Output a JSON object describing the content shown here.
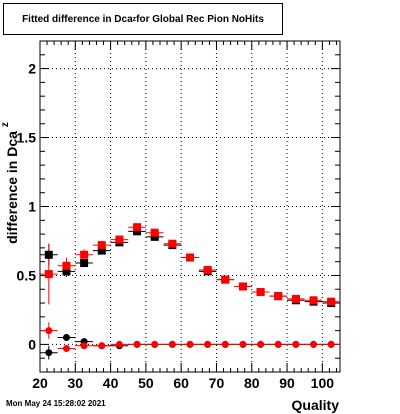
{
  "title": {
    "prefix": "Fitted difference in Dca",
    "subscript": "z",
    "suffix": " for Global Rec Pion NoHits"
  },
  "footer_timestamp": "Mon May 24 15:28:02 2021",
  "chart_data": {
    "type": "scatter",
    "title": "Fitted difference in Dca_z for Global Rec Pion NoHits",
    "xlabel": "Quality",
    "ylabel": "difference in Dca",
    "ylabel_subscript": "z",
    "xlim": [
      20,
      105
    ],
    "ylim": [
      -0.2,
      2.2
    ],
    "xticks": [
      20,
      30,
      40,
      50,
      60,
      70,
      80,
      90,
      100
    ],
    "xtick_labels": [
      "20",
      "30",
      "40",
      "50",
      "60",
      "70",
      "80",
      "90",
      "100"
    ],
    "yticks": [
      0,
      0.5,
      1,
      1.5,
      2
    ],
    "ytick_labels": [
      "0",
      "0.5",
      "1",
      "1.5",
      "2"
    ],
    "grid": true,
    "series": [
      {
        "marker": "square",
        "color": "#000000",
        "x": [
          22.5,
          27.5,
          32.5,
          37.5,
          42.5,
          47.5,
          52.5,
          57.5,
          62.5,
          67.5,
          72.5,
          77.5,
          82.5,
          87.5,
          92.5,
          97.5,
          102.5
        ],
        "y": [
          0.65,
          0.53,
          0.59,
          0.68,
          0.74,
          0.82,
          0.78,
          0.72,
          0.63,
          0.53,
          0.47,
          0.42,
          0.38,
          0.35,
          0.32,
          0.31,
          0.3
        ],
        "yerr": [
          0.08,
          0.04,
          0.03,
          0.02,
          0.02,
          0.02,
          0.02,
          0.02,
          0.02,
          0.02,
          0.02,
          0.02,
          0.02,
          0.02,
          0.02,
          0.02,
          0.02
        ]
      },
      {
        "marker": "square",
        "color": "#ff0000",
        "x": [
          22.5,
          27.5,
          32.5,
          37.5,
          42.5,
          47.5,
          52.5,
          57.5,
          62.5,
          67.5,
          72.5,
          77.5,
          82.5,
          87.5,
          92.5,
          97.5,
          102.5
        ],
        "y": [
          0.51,
          0.57,
          0.65,
          0.72,
          0.76,
          0.85,
          0.81,
          0.73,
          0.63,
          0.54,
          0.47,
          0.42,
          0.38,
          0.35,
          0.33,
          0.32,
          0.31
        ],
        "yerr": [
          0.22,
          0.06,
          0.04,
          0.03,
          0.02,
          0.02,
          0.02,
          0.02,
          0.02,
          0.02,
          0.02,
          0.02,
          0.02,
          0.02,
          0.02,
          0.02,
          0.02
        ]
      },
      {
        "marker": "circle",
        "color": "#000000",
        "x": [
          22.5,
          27.5,
          32.5,
          37.5,
          42.5,
          47.5,
          52.5,
          57.5,
          62.5,
          67.5,
          72.5,
          77.5,
          82.5,
          87.5,
          92.5,
          97.5,
          102.5
        ],
        "y": [
          -0.06,
          0.05,
          0.02,
          -0.01,
          -0.01,
          0.0,
          0.0,
          0.0,
          0.0,
          0.0,
          0.0,
          0.0,
          0.0,
          0.0,
          0.0,
          0.0,
          0.0
        ],
        "yerr": [
          0.05,
          0.02,
          0.01,
          0.01,
          0.01,
          0.01,
          0.01,
          0.01,
          0.01,
          0.01,
          0.01,
          0.01,
          0.01,
          0.01,
          0.01,
          0.01,
          0.01
        ]
      },
      {
        "marker": "circle",
        "color": "#ff0000",
        "x": [
          22.5,
          27.5,
          32.5,
          37.5,
          42.5,
          47.5,
          52.5,
          57.5,
          62.5,
          67.5,
          72.5,
          77.5,
          82.5,
          87.5,
          92.5,
          97.5,
          102.5
        ],
        "y": [
          0.1,
          -0.03,
          -0.01,
          -0.01,
          0.0,
          0.0,
          0.0,
          0.0,
          0.0,
          0.0,
          0.0,
          0.0,
          0.0,
          0.0,
          0.0,
          0.0,
          0.0
        ],
        "yerr": [
          0.06,
          0.02,
          0.01,
          0.01,
          0.01,
          0.01,
          0.01,
          0.01,
          0.01,
          0.01,
          0.01,
          0.01,
          0.01,
          0.01,
          0.01,
          0.01,
          0.01
        ]
      }
    ]
  }
}
